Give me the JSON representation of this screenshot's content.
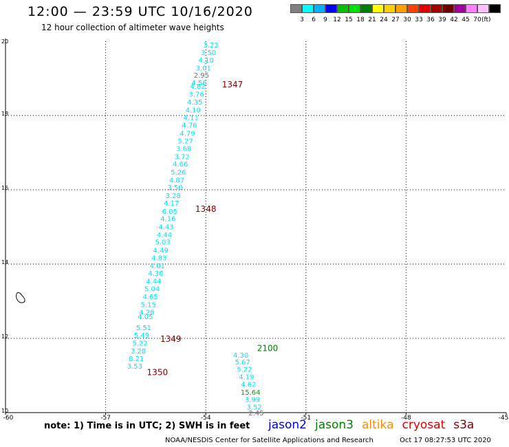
{
  "header": {
    "title": "12:00 — 23:59 UTC 10/16/2020",
    "subtitle": "12 hour collection of altimeter wave heights"
  },
  "colorbar": {
    "colors": [
      "#808080",
      "#00ffff",
      "#00b0ff",
      "#0000ff",
      "#00c000",
      "#00e000",
      "#008000",
      "#ffff00",
      "#ffd000",
      "#ffa000",
      "#ff4000",
      "#e00000",
      "#a00000",
      "#700000",
      "#a000a0",
      "#ff80ff",
      "#ffc0ff",
      "#000000"
    ],
    "labels": [
      "3",
      "6",
      "9",
      "12",
      "15",
      "18",
      "21",
      "24",
      "27",
      "30",
      "33",
      "36",
      "39",
      "42",
      "45",
      "70"
    ],
    "unit_label": "(ft)"
  },
  "chart_data": {
    "type": "scatter",
    "title": "12 hour collection of altimeter wave heights",
    "xlim": [
      -60,
      -45
    ],
    "ylim": [
      10,
      20
    ],
    "x_ticks": [
      "-60",
      "-57",
      "-54",
      "-51",
      "-48",
      "-45"
    ],
    "y_ticks": [
      "10",
      "12",
      "14",
      "16",
      "18",
      "20"
    ],
    "grid": true,
    "units": "ft",
    "track_west": {
      "color": "#00e0f0",
      "points": [
        {
          "lon": -53.85,
          "lat": 19.91,
          "label": "3.23"
        },
        {
          "lon": -53.92,
          "lat": 19.7,
          "label": "3.50"
        },
        {
          "lon": -53.99,
          "lat": 19.5,
          "label": "4.10"
        },
        {
          "lon": -54.07,
          "lat": 19.29,
          "label": "3.01"
        },
        {
          "lon": -54.13,
          "lat": 19.09,
          "label": "2.95",
          "color": "#707070"
        },
        {
          "lon": -54.2,
          "lat": 18.89,
          "label": "4.56"
        },
        {
          "lon": -54.24,
          "lat": 18.8,
          "label": "4.82"
        },
        {
          "lon": -54.28,
          "lat": 18.58,
          "label": "3.76"
        },
        {
          "lon": -54.33,
          "lat": 18.37,
          "label": "4.35"
        },
        {
          "lon": -54.38,
          "lat": 18.16,
          "label": "4.10"
        },
        {
          "lon": -54.44,
          "lat": 17.95,
          "label": "4.11"
        },
        {
          "lon": -54.49,
          "lat": 17.75,
          "label": "4.76"
        },
        {
          "lon": -54.55,
          "lat": 17.53,
          "label": "4.79"
        },
        {
          "lon": -54.61,
          "lat": 17.32,
          "label": "5.27"
        },
        {
          "lon": -54.66,
          "lat": 17.12,
          "label": "3.68"
        },
        {
          "lon": -54.71,
          "lat": 16.9,
          "label": "3.72"
        },
        {
          "lon": -54.76,
          "lat": 16.7,
          "label": "4.66"
        },
        {
          "lon": -54.82,
          "lat": 16.48,
          "label": "5.26"
        },
        {
          "lon": -54.87,
          "lat": 16.27,
          "label": "4.87"
        },
        {
          "lon": -54.92,
          "lat": 16.07,
          "label": "3.50"
        },
        {
          "lon": -54.98,
          "lat": 15.85,
          "label": "3.28"
        },
        {
          "lon": -55.03,
          "lat": 15.65,
          "label": "4.17"
        },
        {
          "lon": -55.08,
          "lat": 15.43,
          "label": "6.05"
        },
        {
          "lon": -55.13,
          "lat": 15.23,
          "label": "4.16"
        },
        {
          "lon": -55.19,
          "lat": 15.01,
          "label": "4.43"
        },
        {
          "lon": -55.24,
          "lat": 14.8,
          "label": "4.44"
        },
        {
          "lon": -55.29,
          "lat": 14.6,
          "label": "5.03"
        },
        {
          "lon": -55.35,
          "lat": 14.38,
          "label": "4.49"
        },
        {
          "lon": -55.4,
          "lat": 14.18,
          "label": "4.83"
        },
        {
          "lon": -55.45,
          "lat": 13.96,
          "label": "4.01"
        },
        {
          "lon": -55.5,
          "lat": 13.76,
          "label": "4.36"
        },
        {
          "lon": -55.56,
          "lat": 13.55,
          "label": "4.44"
        },
        {
          "lon": -55.61,
          "lat": 13.34,
          "label": "5.04"
        },
        {
          "lon": -55.66,
          "lat": 13.13,
          "label": "4.65"
        },
        {
          "lon": -55.72,
          "lat": 12.92,
          "label": "5.15"
        },
        {
          "lon": -55.77,
          "lat": 12.71,
          "label": "4.28"
        },
        {
          "lon": -55.81,
          "lat": 12.59,
          "label": "4.05"
        },
        {
          "lon": -55.86,
          "lat": 12.3,
          "label": "5.51"
        },
        {
          "lon": -55.92,
          "lat": 12.09,
          "label": "5.49"
        },
        {
          "lon": -55.97,
          "lat": 11.88,
          "label": "5.22"
        },
        {
          "lon": -56.02,
          "lat": 11.67,
          "label": "3.28"
        },
        {
          "lon": -56.08,
          "lat": 11.46,
          "label": "8.21"
        },
        {
          "lon": -56.13,
          "lat": 11.26,
          "label": "3.53"
        }
      ]
    },
    "track_east": {
      "color": "#00e0f0",
      "points": [
        {
          "lon": -52.95,
          "lat": 11.56,
          "label": "4.30"
        },
        {
          "lon": -52.9,
          "lat": 11.37,
          "label": "5.67"
        },
        {
          "lon": -52.84,
          "lat": 11.18,
          "label": "5.22"
        },
        {
          "lon": -52.78,
          "lat": 10.97,
          "label": "4.19"
        },
        {
          "lon": -52.72,
          "lat": 10.77,
          "label": "4.62"
        },
        {
          "lon": -52.66,
          "lat": 10.56,
          "label": "15.64",
          "color": "#00a000"
        },
        {
          "lon": -52.6,
          "lat": 10.36,
          "label": "3.99"
        },
        {
          "lon": -52.55,
          "lat": 10.16,
          "label": "3.52"
        },
        {
          "lon": -52.49,
          "lat": 10.0,
          "label": "2.45",
          "color": "#707070"
        }
      ]
    },
    "time_labels": [
      {
        "lon": -53.2,
        "lat": 18.85,
        "label": "1347",
        "color": "#800000"
      },
      {
        "lon": -54.0,
        "lat": 15.5,
        "label": "1348",
        "color": "#800000"
      },
      {
        "lon": -55.05,
        "lat": 12.0,
        "label": "1349",
        "color": "#800000"
      },
      {
        "lon": -55.45,
        "lat": 11.1,
        "label": "1350",
        "color": "#800000"
      },
      {
        "lon": -52.15,
        "lat": 11.75,
        "label": "2100",
        "color": "#008000"
      }
    ]
  },
  "footer": {
    "note": "note:  1) Time is in UTC;  2) SWH is in feet",
    "satellites": [
      {
        "name": "jason2",
        "color": "#0000e0"
      },
      {
        "name": "jason3",
        "color": "#008000"
      },
      {
        "name": "altika",
        "color": "#ff8c00"
      },
      {
        "name": "cryosat",
        "color": "#e00000"
      },
      {
        "name": "s3a",
        "color": "#800000"
      }
    ],
    "credit": "NOAA/NESDIS Center for Satellite Applications and Research",
    "timestamp": "Oct 17 08:27:53 UTC 2020"
  }
}
